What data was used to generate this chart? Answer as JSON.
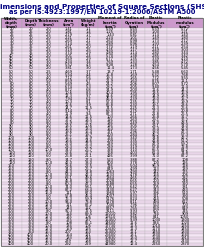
{
  "title_line1": "Dimensions and Properties of Square Sections (SHS)",
  "title_line2": "as per IS:4923:1997/EN 10219-1:2006/ASTM A500",
  "columns": [
    "Width,\ndepth\n(mm)",
    "Depth\n(mm)",
    "Thickness\n(mm)",
    "Area\n(cm²)",
    "Weight\n(kg/m)",
    "Moment of\nInertia\n(cm⁴)",
    "Radius of\nGyration\n(cm)",
    "Elastic\nModulus\n(cm³)",
    "Plastic\nmodulus\n(cm³)"
  ],
  "rows": [
    [
      "20",
      "20",
      "2.0",
      "1.41",
      "1.1",
      "0.59",
      "0.65",
      "0.59",
      "0.72"
    ],
    [
      "25",
      "25",
      "2.0",
      "1.81",
      "1.4",
      "1.25",
      "0.83",
      "1.00",
      "1.21"
    ],
    [
      "25",
      "25",
      "2.5",
      "2.19",
      "1.7",
      "1.43",
      "0.81",
      "1.14",
      "1.40"
    ],
    [
      "30",
      "30",
      "2.0",
      "2.21",
      "1.7",
      "2.24",
      "1.01",
      "1.49",
      "1.80"
    ],
    [
      "30",
      "30",
      "2.5",
      "2.69",
      "2.1",
      "2.60",
      "0.98",
      "1.73",
      "2.12"
    ],
    [
      "30",
      "30",
      "3.0",
      "3.14",
      "2.5",
      "2.89",
      "0.96",
      "1.93",
      "2.39"
    ],
    [
      "35",
      "35",
      "2.0",
      "2.61",
      "2.0",
      "3.70",
      "1.19",
      "2.11",
      "2.54"
    ],
    [
      "35",
      "35",
      "2.5",
      "3.19",
      "2.5",
      "4.35",
      "1.17",
      "2.49",
      "3.03"
    ],
    [
      "35",
      "35",
      "3.0",
      "3.74",
      "2.9",
      "4.89",
      "1.14",
      "2.80",
      "3.44"
    ],
    [
      "40",
      "40",
      "2.0",
      "3.01",
      "2.4",
      "5.70",
      "1.38",
      "2.85",
      "3.42"
    ],
    [
      "40",
      "40",
      "2.5",
      "3.69",
      "2.9",
      "6.77",
      "1.35",
      "3.39",
      "4.10"
    ],
    [
      "40",
      "40",
      "3.0",
      "4.34",
      "3.4",
      "7.69",
      "1.33",
      "3.85",
      "4.72"
    ],
    [
      "40",
      "40",
      "4.0",
      "5.52",
      "4.3",
      "9.08",
      "1.28",
      "4.54",
      "5.70"
    ],
    [
      "50",
      "50",
      "2.0",
      "3.81",
      "3.0",
      "11.4",
      "1.73",
      "4.56",
      "5.45"
    ],
    [
      "50",
      "50",
      "2.5",
      "4.69",
      "3.7",
      "13.7",
      "1.71",
      "5.48",
      "6.60"
    ],
    [
      "50",
      "50",
      "3.0",
      "5.54",
      "4.4",
      "15.8",
      "1.69",
      "6.32",
      "7.68"
    ],
    [
      "50",
      "50",
      "4.0",
      "7.12",
      "5.6",
      "19.3",
      "1.65",
      "7.72",
      "9.55"
    ],
    [
      "50",
      "50",
      "5.0",
      "8.59",
      "6.7",
      "21.9",
      "1.60",
      "8.76",
      "11.1"
    ],
    [
      "60",
      "60",
      "2.5",
      "5.69",
      "4.5",
      "24.2",
      "2.06",
      "8.07",
      "9.72"
    ],
    [
      "60",
      "60",
      "3.0",
      "6.74",
      "5.3",
      "28.2",
      "2.05",
      "9.40",
      "11.4"
    ],
    [
      "60",
      "60",
      "4.0",
      "8.72",
      "6.8",
      "34.9",
      "2.00",
      "11.6",
      "14.3"
    ],
    [
      "60",
      "60",
      "5.0",
      "10.6",
      "8.3",
      "40.4",
      "1.95",
      "13.5",
      "16.9"
    ],
    [
      "60",
      "60",
      "6.0",
      "12.3",
      "9.7",
      "44.6",
      "1.90",
      "14.9",
      "18.9"
    ],
    [
      "70",
      "70",
      "3.0",
      "7.94",
      "6.2",
      "45.5",
      "2.39",
      "13.0",
      "15.7"
    ],
    [
      "70",
      "70",
      "4.0",
      "10.3",
      "8.1",
      "57.0",
      "2.35",
      "16.3",
      "19.9"
    ],
    [
      "70",
      "70",
      "5.0",
      "12.6",
      "9.9",
      "66.8",
      "2.30",
      "19.1",
      "23.6"
    ],
    [
      "70",
      "70",
      "6.0",
      "14.7",
      "11.5",
      "74.5",
      "2.25",
      "21.3",
      "26.6"
    ],
    [
      "80",
      "80",
      "3.0",
      "9.14",
      "7.2",
      "69.0",
      "2.75",
      "17.3",
      "20.8"
    ],
    [
      "80",
      "80",
      "4.0",
      "11.9",
      "9.4",
      "87.3",
      "2.71",
      "21.8",
      "26.5"
    ],
    [
      "80",
      "80",
      "5.0",
      "14.6",
      "11.5",
      "103",
      "2.66",
      "25.8",
      "31.7"
    ],
    [
      "80",
      "80",
      "6.0",
      "17.2",
      "13.5",
      "116",
      "2.60",
      "29.1",
      "36.2"
    ],
    [
      "80",
      "80",
      "8.0",
      "21.9",
      "17.2",
      "136",
      "2.49",
      "34.0",
      "43.5"
    ],
    [
      "90",
      "90",
      "4.0",
      "13.5",
      "10.6",
      "126",
      "3.05",
      "28.1",
      "34.0"
    ],
    [
      "90",
      "90",
      "5.0",
      "16.6",
      "13.0",
      "150",
      "3.01",
      "33.4",
      "41.0"
    ],
    [
      "90",
      "90",
      "6.0",
      "19.6",
      "15.4",
      "171",
      "2.96",
      "38.0",
      "47.3"
    ],
    [
      "90",
      "90",
      "8.0",
      "25.1",
      "19.7",
      "203",
      "2.84",
      "45.2",
      "57.3"
    ],
    [
      "100",
      "100",
      "4.0",
      "15.1",
      "11.9",
      "174",
      "3.40",
      "34.8",
      "42.2"
    ],
    [
      "100",
      "100",
      "5.0",
      "18.6",
      "14.6",
      "209",
      "3.35",
      "41.8",
      "51.2"
    ],
    [
      "100",
      "100",
      "6.0",
      "22.0",
      "17.3",
      "239",
      "3.30",
      "47.9",
      "59.2"
    ],
    [
      "100",
      "100",
      "8.0",
      "28.3",
      "22.2",
      "289",
      "3.19",
      "57.8",
      "72.8"
    ],
    [
      "100",
      "100",
      "10.0",
      "34.0",
      "26.7",
      "328",
      "3.10",
      "65.5",
      "84.2"
    ],
    [
      "120",
      "120",
      "5.0",
      "22.6",
      "17.7",
      "368",
      "4.03",
      "61.4",
      "74.8"
    ],
    [
      "120",
      "120",
      "6.0",
      "26.8",
      "21.1",
      "426",
      "3.99",
      "71.0",
      "87.2"
    ],
    [
      "120",
      "120",
      "8.0",
      "34.7",
      "27.3",
      "523",
      "3.88",
      "87.2",
      "108"
    ],
    [
      "120",
      "120",
      "10.0",
      "42.0",
      "33.0",
      "600",
      "3.78",
      "100",
      "126"
    ],
    [
      "150",
      "150",
      "5.0",
      "28.6",
      "22.5",
      "726",
      "5.04",
      "96.9",
      "118"
    ],
    [
      "150",
      "150",
      "6.0",
      "34.0",
      "26.7",
      "849",
      "4.99",
      "113",
      "139"
    ],
    [
      "150",
      "150",
      "8.0",
      "44.3",
      "34.8",
      "1063",
      "4.90",
      "142",
      "175"
    ],
    [
      "150",
      "150",
      "10.0",
      "54.0",
      "42.4",
      "1233",
      "4.78",
      "164",
      "206"
    ],
    [
      "150",
      "150",
      "12.0",
      "63.1",
      "49.6",
      "1364",
      "4.65",
      "182",
      "232"
    ],
    [
      "200",
      "200",
      "6.0",
      "45.8",
      "36.0",
      "2028",
      "6.65",
      "203",
      "248"
    ],
    [
      "200",
      "200",
      "8.0",
      "60.3",
      "47.3",
      "2588",
      "6.55",
      "259",
      "320"
    ],
    [
      "200",
      "200",
      "10.0",
      "74.0",
      "58.1",
      "3051",
      "6.42",
      "305",
      "381"
    ],
    [
      "200",
      "200",
      "12.0",
      "87.2",
      "68.4",
      "3430",
      "6.27",
      "343",
      "433"
    ],
    [
      "200",
      "200",
      "16.0",
      "111",
      "87.0",
      "3960",
      "5.97",
      "396",
      "510"
    ],
    [
      "250",
      "250",
      "6.0",
      "57.8",
      "45.4",
      "4007",
      "8.33",
      "321",
      "390"
    ],
    [
      "250",
      "250",
      "8.0",
      "76.3",
      "59.9",
      "5176",
      "8.24",
      "414",
      "508"
    ],
    [
      "250",
      "250",
      "10.0",
      "94.0",
      "73.8",
      "6178",
      "8.11",
      "494",
      "612"
    ],
    [
      "250",
      "250",
      "12.0",
      "111",
      "87.2",
      "7040",
      "7.96",
      "563",
      "703"
    ],
    [
      "250",
      "250",
      "16.0",
      "143",
      "112",
      "8357",
      "7.65",
      "669",
      "849"
    ],
    [
      "300",
      "300",
      "8.0",
      "92.3",
      "72.5",
      "9111",
      "9.93",
      "607",
      "745"
    ],
    [
      "300",
      "300",
      "10.0",
      "114",
      "89.5",
      "11010",
      "9.82",
      "734",
      "909"
    ],
    [
      "300",
      "300",
      "12.0",
      "135",
      "106",
      "12610",
      "9.66",
      "841",
      "1050"
    ],
    [
      "300",
      "300",
      "16.0",
      "175",
      "137",
      "15450",
      "9.39",
      "1030",
      "1300"
    ],
    [
      "350",
      "350",
      "8.0",
      "108",
      "85.1",
      "14600",
      "11.6",
      "834",
      "1020"
    ],
    [
      "350",
      "350",
      "10.0",
      "134",
      "105",
      "17730",
      "11.5",
      "1010",
      "1250"
    ],
    [
      "350",
      "350",
      "12.0",
      "159",
      "125",
      "20430",
      "11.3",
      "1170",
      "1450"
    ],
    [
      "350",
      "350",
      "16.0",
      "207",
      "163",
      "25400",
      "11.1",
      "1450",
      "1830"
    ],
    [
      "400",
      "400",
      "10.0",
      "154",
      "121",
      "26600",
      "13.1",
      "1330",
      "1640"
    ],
    [
      "400",
      "400",
      "12.0",
      "183",
      "144",
      "30830",
      "13.0",
      "1540",
      "1910"
    ],
    [
      "400",
      "400",
      "16.0",
      "239",
      "188",
      "38690",
      "12.7",
      "1930",
      "2430"
    ],
    [
      "400",
      "400",
      "20.0",
      "292",
      "229",
      "44980",
      "12.4",
      "2250",
      "2870"
    ]
  ],
  "header_bg": "#cc99cc",
  "row_colors": [
    "#f5e6f5",
    "#e8d5e8"
  ],
  "border_color": "#aaaaaa",
  "title_color": "#000080",
  "title_fontsize": 5.2,
  "subtitle_fontsize": 4.8,
  "header_fontsize": 2.8,
  "data_fontsize": 2.6,
  "fig_width": 2.04,
  "fig_height": 2.47,
  "dpi": 100
}
